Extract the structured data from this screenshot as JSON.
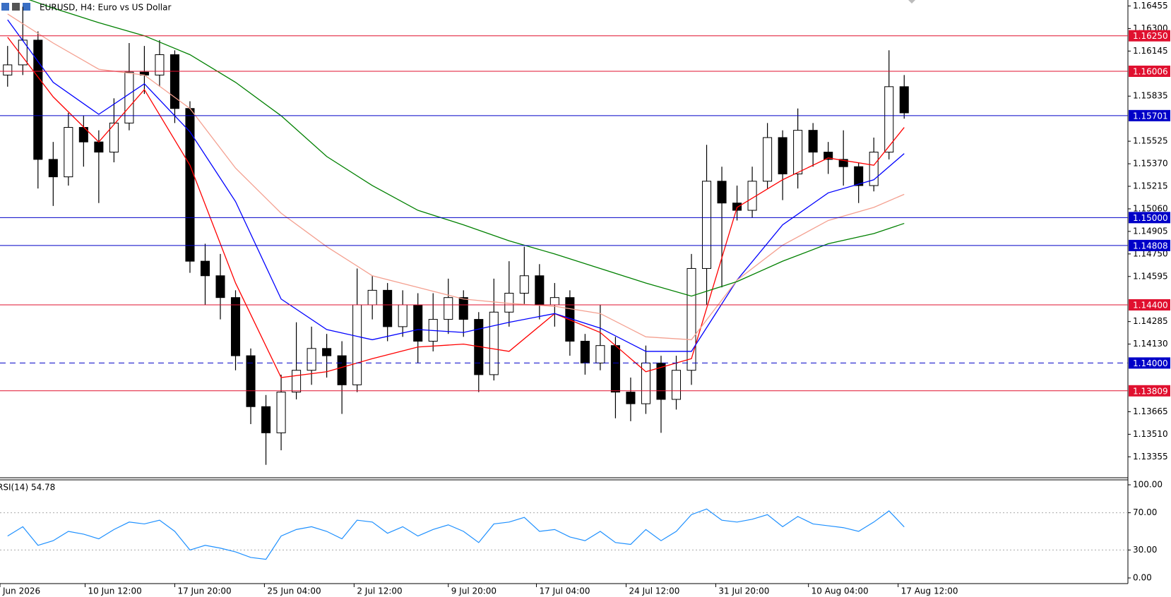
{
  "chart_data": [
    {
      "type": "candlestick",
      "title": "EURUSD, H4:  Euro vs US Dollar",
      "x": [
        0,
        1,
        2,
        3,
        4,
        5,
        6,
        7,
        8,
        9,
        10,
        11,
        12,
        13,
        14,
        15,
        16,
        17,
        18,
        19,
        20,
        21,
        22,
        23,
        24,
        25,
        26,
        27,
        28,
        29,
        30,
        31,
        32,
        33,
        34,
        35,
        36,
        37,
        38,
        39,
        40,
        41,
        42,
        43,
        44,
        45,
        46,
        47,
        48,
        49,
        50,
        51,
        52,
        53,
        54,
        55,
        56,
        57,
        58,
        59
      ],
      "open": [
        1.1598,
        1.1605,
        1.1622,
        1.154,
        1.1528,
        1.1562,
        1.1552,
        1.1545,
        1.1565,
        1.16,
        1.1598,
        1.1612,
        1.1575,
        1.147,
        1.146,
        1.1445,
        1.1405,
        1.137,
        1.1352,
        1.138,
        1.1395,
        1.141,
        1.1405,
        1.1385,
        1.144,
        1.145,
        1.1425,
        1.144,
        1.1415,
        1.143,
        1.1445,
        1.143,
        1.1392,
        1.1435,
        1.1448,
        1.146,
        1.144,
        1.1445,
        1.1415,
        1.14,
        1.1412,
        1.138,
        1.1372,
        1.14,
        1.1375,
        1.1395,
        1.1465,
        1.1525,
        1.151,
        1.1505,
        1.1525,
        1.1555,
        1.153,
        1.156,
        1.1545,
        1.154,
        1.1535,
        1.1522,
        1.1545,
        1.159
      ],
      "high": [
        1.1618,
        1.1645,
        1.1628,
        1.1552,
        1.1572,
        1.157,
        1.156,
        1.1582,
        1.162,
        1.1618,
        1.1622,
        1.1615,
        1.158,
        1.1482,
        1.1475,
        1.145,
        1.141,
        1.1378,
        1.1392,
        1.1428,
        1.1425,
        1.142,
        1.1415,
        1.1465,
        1.146,
        1.1455,
        1.145,
        1.1448,
        1.1448,
        1.1458,
        1.145,
        1.1435,
        1.1458,
        1.147,
        1.148,
        1.1468,
        1.1455,
        1.145,
        1.142,
        1.144,
        1.1418,
        1.139,
        1.1412,
        1.1405,
        1.1405,
        1.1475,
        1.155,
        1.1535,
        1.1522,
        1.1535,
        1.1565,
        1.156,
        1.1575,
        1.1565,
        1.1552,
        1.156,
        1.1538,
        1.1555,
        1.1615,
        1.1598
      ],
      "low": [
        1.159,
        1.1598,
        1.152,
        1.1508,
        1.1522,
        1.1535,
        1.151,
        1.1538,
        1.156,
        1.1585,
        1.159,
        1.1565,
        1.1462,
        1.144,
        1.143,
        1.1395,
        1.1358,
        1.133,
        1.134,
        1.1375,
        1.1385,
        1.139,
        1.1365,
        1.138,
        1.143,
        1.1415,
        1.1418,
        1.14,
        1.1408,
        1.142,
        1.1418,
        1.138,
        1.1388,
        1.1425,
        1.144,
        1.143,
        1.1425,
        1.1405,
        1.1392,
        1.1395,
        1.1362,
        1.136,
        1.1365,
        1.1352,
        1.1368,
        1.1385,
        1.144,
        1.1452,
        1.1498,
        1.15,
        1.152,
        1.1512,
        1.152,
        1.1535,
        1.153,
        1.1522,
        1.151,
        1.1518,
        1.154,
        1.1568
      ],
      "close": [
        1.1605,
        1.1622,
        1.154,
        1.1528,
        1.1562,
        1.1552,
        1.1545,
        1.1565,
        1.16,
        1.1598,
        1.1612,
        1.1575,
        1.147,
        1.146,
        1.1445,
        1.1405,
        1.137,
        1.1352,
        1.138,
        1.1395,
        1.141,
        1.1405,
        1.1385,
        1.144,
        1.145,
        1.1425,
        1.144,
        1.1415,
        1.143,
        1.1445,
        1.143,
        1.1392,
        1.1435,
        1.1448,
        1.146,
        1.144,
        1.1445,
        1.1415,
        1.14,
        1.1412,
        1.138,
        1.1372,
        1.14,
        1.1375,
        1.1395,
        1.1465,
        1.1525,
        1.151,
        1.1505,
        1.1525,
        1.1555,
        1.153,
        1.156,
        1.1545,
        1.154,
        1.1535,
        1.1522,
        1.1545,
        1.159,
        1.1572
      ],
      "up_color": "#ffffff",
      "down_color": "#000000",
      "xlim": [
        -0.5,
        59.5
      ],
      "xticks": [
        {
          "value": -0.5,
          "label": "Jun 2026"
        },
        {
          "value": 5.1,
          "label": "10 Jun 12:00"
        },
        {
          "value": 11,
          "label": "17 Jun 20:00"
        },
        {
          "value": 16.9,
          "label": "25 Jun 04:00"
        },
        {
          "value": 22.8,
          "label": "2 Jul 12:00"
        },
        {
          "value": 29,
          "label": "9 Jul 20:00"
        },
        {
          "value": 34.8,
          "label": "17 Jul 04:00"
        },
        {
          "value": 40.7,
          "label": "24 Jul 12:00"
        },
        {
          "value": 46.6,
          "label": "31 Jul 20:00"
        },
        {
          "value": 52.7,
          "label": "10 Aug 04:00"
        },
        {
          "value": 58.6,
          "label": "17 Aug 12:00"
        }
      ],
      "ylim": [
        1.13216,
        1.16496
      ],
      "yticks": [
        1.16455,
        {
          "value": 1.163,
          "label": "1.16300"
        },
        1.16145,
        1.15835,
        1.15525,
        {
          "value": 1.1537,
          "label": "1.15370"
        },
        1.15215,
        {
          "value": 1.1506,
          "label": "1.15060"
        },
        1.14905,
        {
          "value": 1.1475,
          "label": "1.14750"
        },
        1.14595,
        1.14285,
        {
          "value": 1.1413,
          "label": "1.14130"
        },
        1.13665,
        {
          "value": 1.1351,
          "label": "1.13510"
        },
        1.13355
      ],
      "lines": [
        {
          "color": "#ff0000",
          "x": [
            0,
            3,
            6,
            9,
            12,
            15,
            18,
            21,
            24,
            27,
            30,
            33,
            36,
            39,
            42,
            45,
            48,
            51,
            54,
            57,
            59
          ],
          "values": [
            1.1624,
            1.1583,
            1.1552,
            1.1588,
            1.1536,
            1.1455,
            1.139,
            1.1394,
            1.1403,
            1.1411,
            1.1413,
            1.1408,
            1.1434,
            1.1421,
            1.1394,
            1.1403,
            1.1507,
            1.1526,
            1.1541,
            1.1536,
            1.1562
          ]
        },
        {
          "color": "#0000ff",
          "x": [
            0,
            3,
            6,
            9,
            12,
            15,
            18,
            21,
            24,
            27,
            30,
            33,
            36,
            39,
            42,
            45,
            48,
            51,
            54,
            57,
            59
          ],
          "values": [
            1.1636,
            1.1593,
            1.1571,
            1.1592,
            1.1559,
            1.1511,
            1.1444,
            1.1423,
            1.1416,
            1.1423,
            1.1421,
            1.1428,
            1.1434,
            1.1424,
            1.1408,
            1.1408,
            1.1457,
            1.1495,
            1.1517,
            1.1526,
            1.1544
          ]
        },
        {
          "color": "#f4a090",
          "x": [
            0,
            3,
            6,
            9,
            12,
            15,
            18,
            21,
            24,
            27,
            30,
            33,
            36,
            39,
            42,
            45,
            48,
            51,
            54,
            57,
            59
          ],
          "values": [
            1.164,
            1.162,
            1.1602,
            1.1598,
            1.1575,
            1.1534,
            1.1503,
            1.148,
            1.146,
            1.1452,
            1.1444,
            1.1441,
            1.1439,
            1.1434,
            1.1418,
            1.1416,
            1.1457,
            1.1481,
            1.1498,
            1.1507,
            1.1516
          ]
        },
        {
          "color": "#008000",
          "x": [
            0,
            3,
            6,
            9,
            12,
            15,
            18,
            21,
            24,
            27,
            30,
            33,
            36,
            39,
            42,
            45,
            48,
            51,
            54,
            57,
            59
          ],
          "values": [
            1.1655,
            1.1644,
            1.1634,
            1.1625,
            1.1612,
            1.1593,
            1.157,
            1.1542,
            1.1522,
            1.1505,
            1.1495,
            1.1484,
            1.1475,
            1.1465,
            1.1455,
            1.1446,
            1.1456,
            1.147,
            1.1482,
            1.1489,
            1.1496
          ]
        }
      ],
      "levels": [
        {
          "value": 1.1625,
          "label": "1.16250",
          "color": "#e0102f",
          "dashed": false
        },
        {
          "value": 1.16006,
          "color": "#e0102f",
          "dashed": false
        },
        {
          "value": 1.15701,
          "color": "#0000c8",
          "dashed": false
        },
        {
          "value": 1.15,
          "label": "1.15000",
          "color": "#0000c8",
          "dashed": false
        },
        {
          "value": 1.14808,
          "color": "#0000c8",
          "dashed": false
        },
        {
          "value": 1.144,
          "label": "1.14400",
          "color": "#e0102f",
          "dashed": false
        },
        {
          "value": 1.14,
          "label": "1.14000",
          "color": "#0000c8",
          "dashed": true
        },
        {
          "value": 1.13809,
          "color": "#e0102f",
          "dashed": false
        }
      ]
    },
    {
      "type": "line",
      "title": "RSI(14) 54.78",
      "color": "#1e90ff",
      "values": [
        45,
        55,
        35,
        40,
        50,
        47,
        42,
        52,
        60,
        58,
        62,
        50,
        30,
        35,
        32,
        28,
        22,
        20,
        45,
        52,
        55,
        50,
        42,
        62,
        60,
        48,
        55,
        45,
        52,
        57,
        50,
        38,
        58,
        60,
        65,
        50,
        52,
        44,
        40,
        50,
        38,
        36,
        52,
        40,
        50,
        68,
        74,
        62,
        60,
        63,
        68,
        55,
        66,
        58,
        56,
        54,
        50,
        60,
        72,
        54.78
      ],
      "ylim": [
        0,
        100
      ],
      "yticks": [
        {
          "value": 100,
          "label": "100.00"
        },
        {
          "value": 70,
          "label": "70.00"
        },
        {
          "value": 30,
          "label": "30.00"
        },
        {
          "value": 0,
          "label": "0.00"
        }
      ],
      "levels": [
        70,
        30
      ]
    }
  ]
}
